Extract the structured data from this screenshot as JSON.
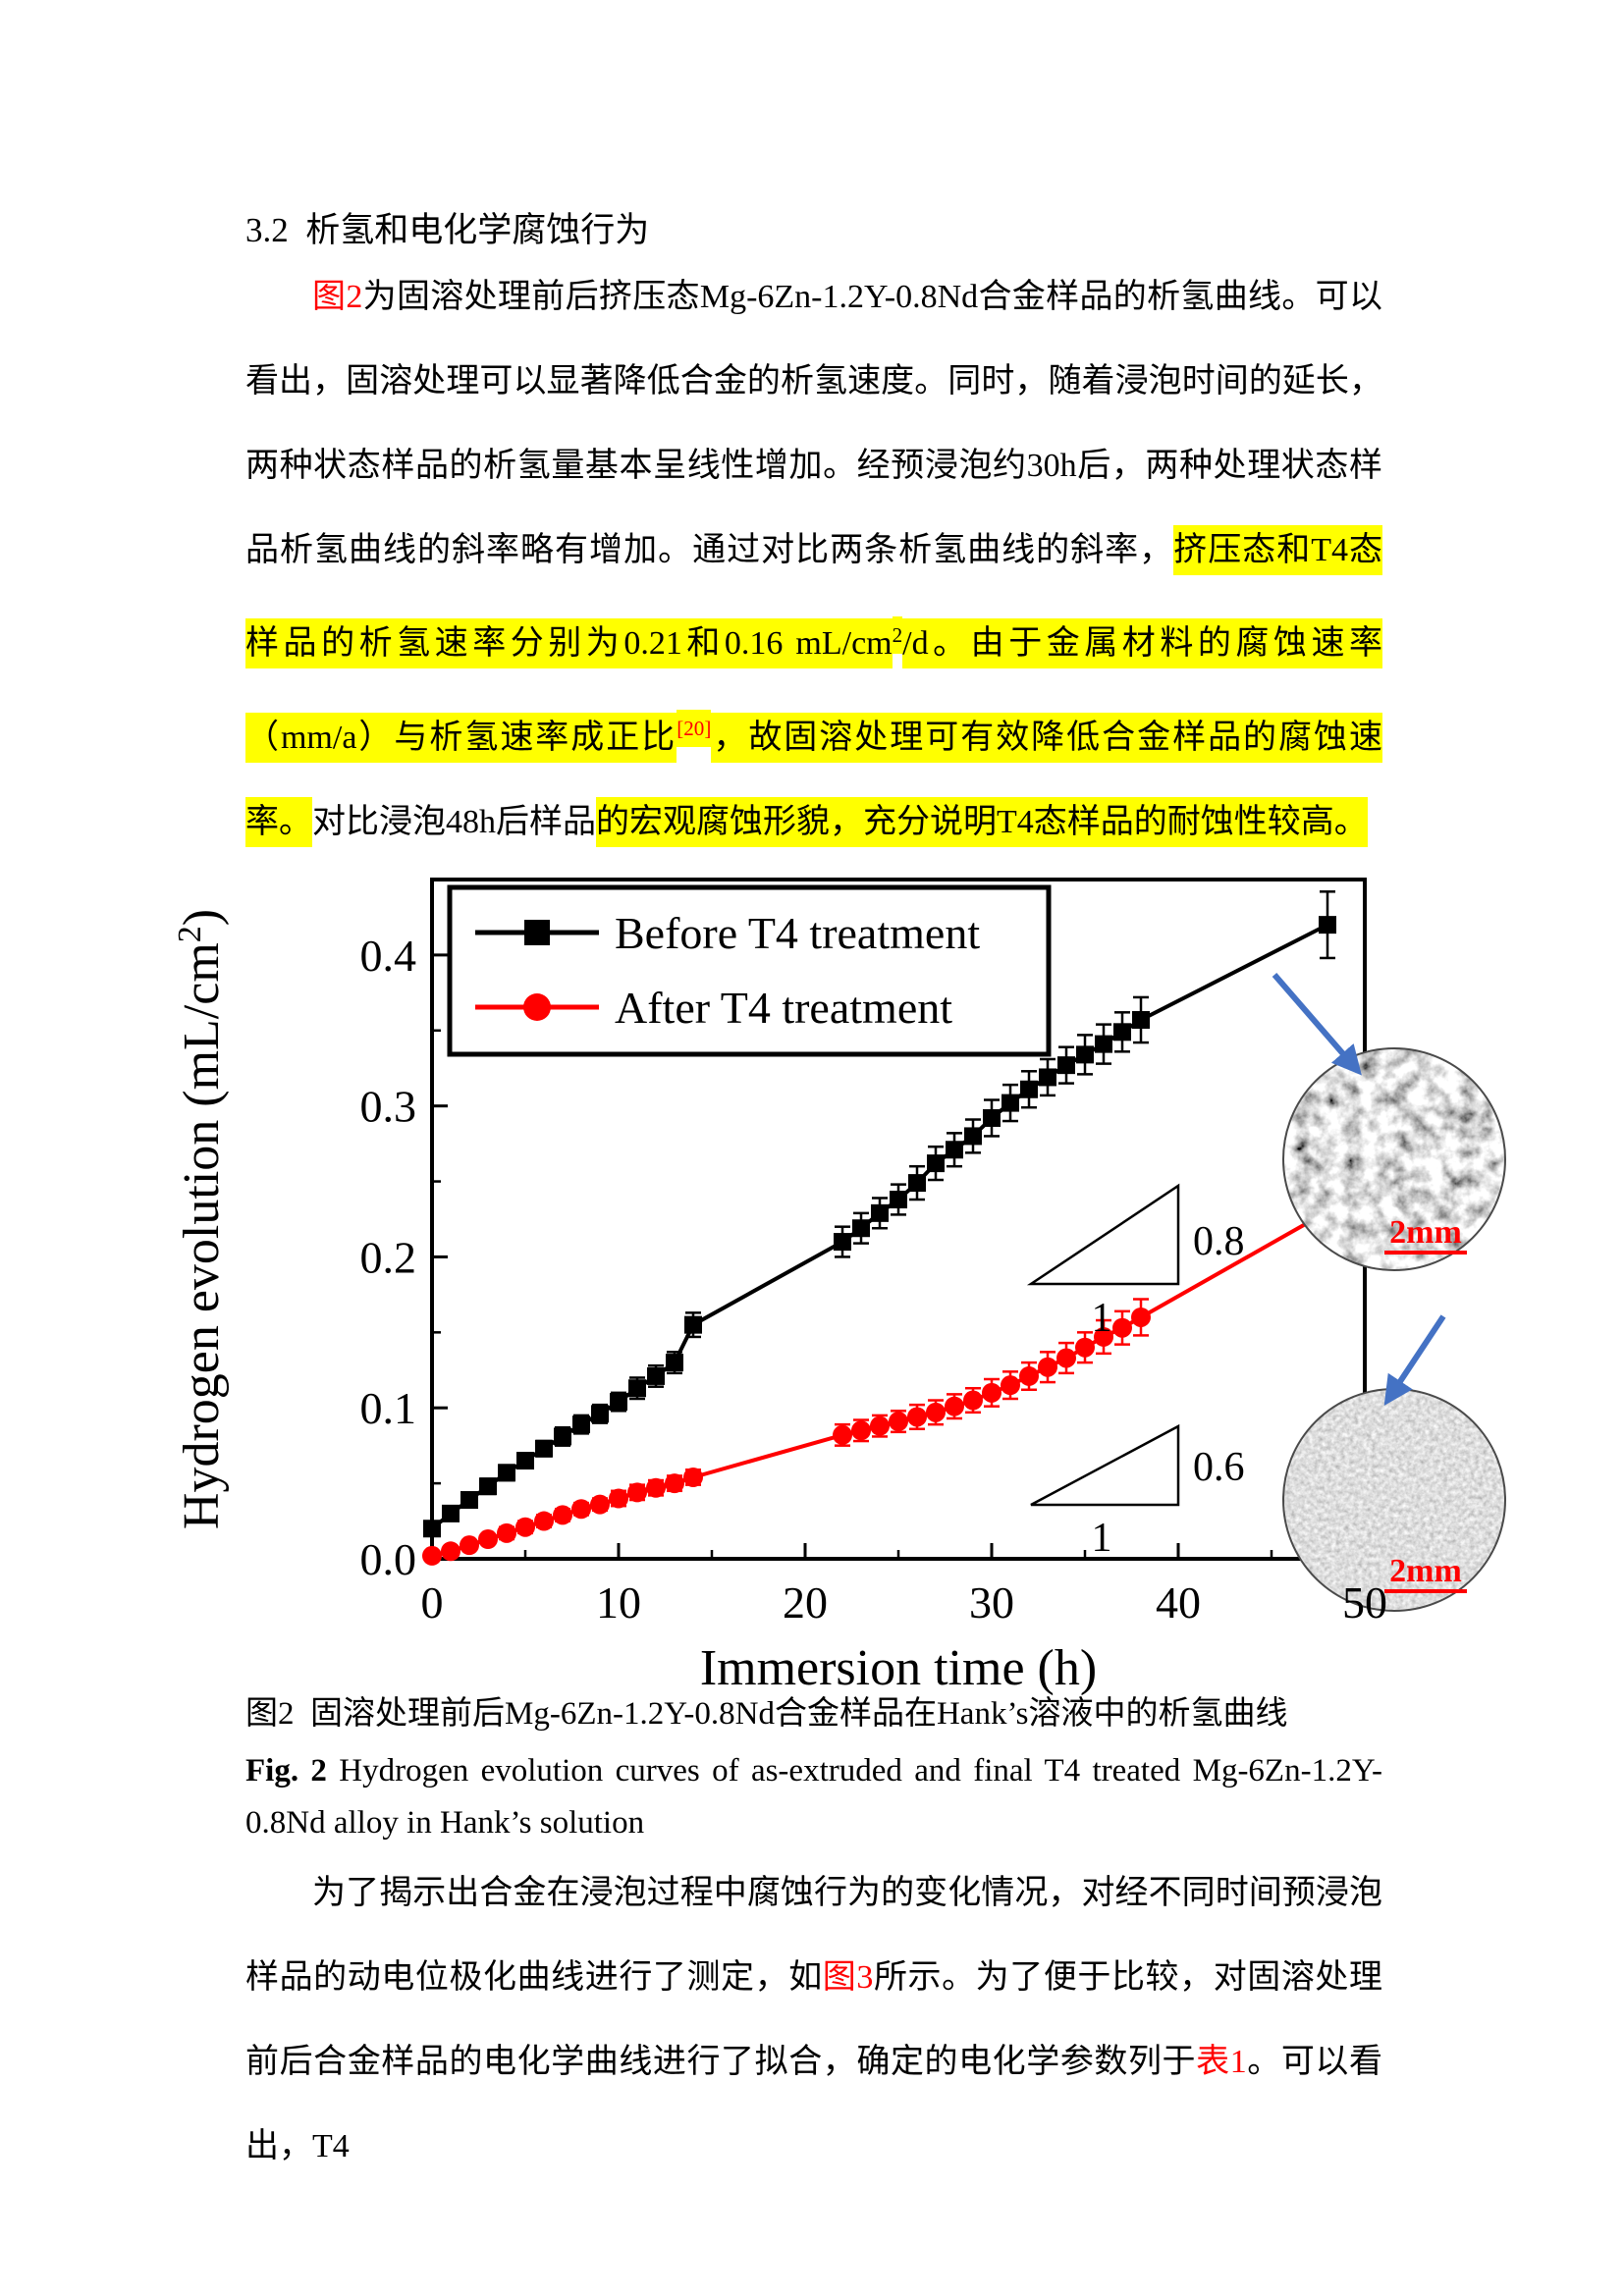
{
  "page": {
    "section_heading": "3.2  析氢和电化学腐蚀行为",
    "paragraph1": [
      {
        "t": "图2",
        "r": true
      },
      {
        "t": "为固溶处理前后挤压态Mg-6Zn-1.2Y-0.8Nd合金样品的析氢曲线。可以看出，固溶处理可以显著降低合金的析氢速度。同时，随着浸泡时间的延长，两种状态样品的析氢量基本呈线性增加。经预浸泡约30h后，两种处理状态样品析氢曲线的斜率略有增加。通过对比两条析氢曲线的斜率，"
      },
      {
        "t": "挤压态和T4态样品的析氢速率分别为0.21和0.16 mL/cm",
        "h": true
      },
      {
        "t": "2",
        "h": true,
        "s": true
      },
      {
        "t": "/d。由于金属材料的腐蚀速率（mm/a）与析氢速率成正比",
        "h": true
      },
      {
        "t": "[20]",
        "h": true,
        "s": true,
        "r": true
      },
      {
        "t": "，故固溶处理可有效降低合金样品的腐蚀速率。",
        "h": true
      },
      {
        "t": "对比浸泡48h后样品"
      },
      {
        "t": "的宏观腐蚀形貌，充分说明T4态样品的耐蚀性较高。",
        "h": true
      }
    ],
    "caption_cn": "图2  固溶处理前后Mg-6Zn-1.2Y-0.8Nd合金样品在Hank’s溶液中的析氢曲线",
    "caption_en": [
      {
        "t": "Fig. 2",
        "b": true
      },
      {
        "t": " Hydrogen evolution curves of as-extruded and final T4 treated Mg-6Zn-1.2Y-0.8Nd alloy in Hank’s solution"
      }
    ],
    "paragraph2": [
      {
        "t": "为了揭示出合金在浸泡过程中腐蚀行为的变化情况，对经不同时间预浸泡样品的动电位极化曲线进行了测定，如"
      },
      {
        "t": "图3",
        "r": true
      },
      {
        "t": "所示。为了便于比较，对固溶处理前后合金样品的电化学曲线进行了拟合，确定的电化学参数列于"
      },
      {
        "t": "表1",
        "r": true
      },
      {
        "t": "。可以看出，T4"
      }
    ],
    "colors": {
      "highlight": "#ffff00",
      "reference": "#ff0000",
      "arrow": "#4472c4"
    }
  },
  "chart_data": {
    "type": "line",
    "title": "",
    "xlabel": "Immersion time (h)",
    "ylabel": {
      "pre": "Hydrogen evolution (mL/cm",
      "sup": "2",
      "post": ")"
    },
    "xlim": [
      0,
      50
    ],
    "ylim": [
      0,
      0.45
    ],
    "x_ticks": [
      0,
      10,
      20,
      30,
      40,
      50
    ],
    "y_ticks": [
      "0.0",
      "0.1",
      "0.2",
      "0.3",
      "0.4"
    ],
    "grid": false,
    "legend_position": "top-left",
    "legend": [
      {
        "label": "Before T4 treatment",
        "color": "#000000",
        "marker": "square"
      },
      {
        "label": "After T4 treatment",
        "color": "#ff0000",
        "marker": "circle"
      }
    ],
    "series": [
      {
        "name": "Before T4 treatment",
        "color": "#000000",
        "marker": "square",
        "points": [
          [
            0,
            0.02,
            0.004
          ],
          [
            1,
            0.03,
            0.004
          ],
          [
            2,
            0.039,
            0.004
          ],
          [
            3,
            0.048,
            0.005
          ],
          [
            4,
            0.057,
            0.005
          ],
          [
            5,
            0.065,
            0.005
          ],
          [
            6,
            0.073,
            0.005
          ],
          [
            7,
            0.081,
            0.006
          ],
          [
            8,
            0.089,
            0.006
          ],
          [
            9,
            0.096,
            0.006
          ],
          [
            10,
            0.104,
            0.006
          ],
          [
            11,
            0.113,
            0.007
          ],
          [
            12,
            0.121,
            0.007
          ],
          [
            13,
            0.13,
            0.007
          ],
          [
            14,
            0.155,
            0.008
          ],
          [
            22,
            0.21,
            0.01
          ],
          [
            23,
            0.219,
            0.01
          ],
          [
            24,
            0.229,
            0.01
          ],
          [
            25,
            0.238,
            0.01
          ],
          [
            26,
            0.249,
            0.011
          ],
          [
            27,
            0.262,
            0.011
          ],
          [
            28,
            0.271,
            0.011
          ],
          [
            29,
            0.28,
            0.011
          ],
          [
            30,
            0.292,
            0.012
          ],
          [
            31,
            0.302,
            0.012
          ],
          [
            32,
            0.311,
            0.012
          ],
          [
            33,
            0.319,
            0.012
          ],
          [
            34,
            0.327,
            0.012
          ],
          [
            35,
            0.334,
            0.013
          ],
          [
            36,
            0.341,
            0.013
          ],
          [
            37,
            0.349,
            0.013
          ],
          [
            38,
            0.357,
            0.015
          ],
          [
            48,
            0.42,
            0.022
          ]
        ]
      },
      {
        "name": "After T4 treatment",
        "color": "#ff0000",
        "marker": "circle",
        "points": [
          [
            0,
            0.002,
            0.003
          ],
          [
            1,
            0.005,
            0.003
          ],
          [
            2,
            0.009,
            0.003
          ],
          [
            3,
            0.013,
            0.003
          ],
          [
            4,
            0.017,
            0.004
          ],
          [
            5,
            0.021,
            0.004
          ],
          [
            6,
            0.025,
            0.004
          ],
          [
            7,
            0.029,
            0.004
          ],
          [
            8,
            0.033,
            0.004
          ],
          [
            9,
            0.036,
            0.004
          ],
          [
            10,
            0.04,
            0.005
          ],
          [
            11,
            0.044,
            0.005
          ],
          [
            12,
            0.047,
            0.005
          ],
          [
            13,
            0.05,
            0.005
          ],
          [
            14,
            0.054,
            0.005
          ],
          [
            22,
            0.082,
            0.007
          ],
          [
            23,
            0.085,
            0.007
          ],
          [
            24,
            0.088,
            0.007
          ],
          [
            25,
            0.091,
            0.007
          ],
          [
            26,
            0.094,
            0.008
          ],
          [
            27,
            0.097,
            0.008
          ],
          [
            28,
            0.101,
            0.008
          ],
          [
            29,
            0.105,
            0.008
          ],
          [
            30,
            0.11,
            0.009
          ],
          [
            31,
            0.115,
            0.009
          ],
          [
            32,
            0.121,
            0.009
          ],
          [
            33,
            0.127,
            0.01
          ],
          [
            34,
            0.133,
            0.01
          ],
          [
            35,
            0.14,
            0.01
          ],
          [
            36,
            0.147,
            0.011
          ],
          [
            37,
            0.153,
            0.011
          ],
          [
            38,
            0.16,
            0.012
          ],
          [
            48,
            0.23,
            0.02
          ]
        ]
      }
    ],
    "annotations": {
      "triangles": [
        {
          "rise": "0.8",
          "run": "1"
        },
        {
          "rise": "0.6",
          "run": "1"
        }
      ],
      "micrographs": [
        {
          "scale_bar": "2mm",
          "points_to": "Before T4 treatment"
        },
        {
          "scale_bar": "2mm",
          "points_to": "After T4 treatment"
        }
      ]
    }
  }
}
